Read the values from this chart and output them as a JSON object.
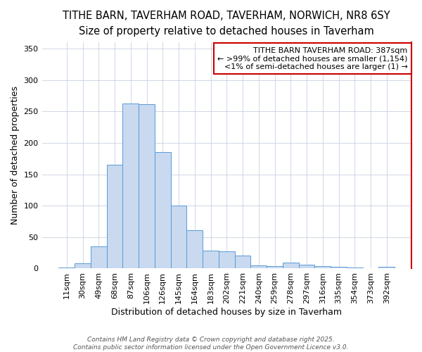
{
  "title1": "TITHE BARN, TAVERHAM ROAD, TAVERHAM, NORWICH, NR8 6SY",
  "title2": "Size of property relative to detached houses in Taverham",
  "xlabel": "Distribution of detached houses by size in Taverham",
  "ylabel": "Number of detached properties",
  "categories": [
    "11sqm",
    "30sqm",
    "49sqm",
    "68sqm",
    "87sqm",
    "106sqm",
    "126sqm",
    "145sqm",
    "164sqm",
    "183sqm",
    "202sqm",
    "221sqm",
    "240sqm",
    "259sqm",
    "278sqm",
    "297sqm",
    "316sqm",
    "335sqm",
    "354sqm",
    "373sqm",
    "392sqm"
  ],
  "values": [
    2,
    8,
    35,
    165,
    263,
    262,
    185,
    100,
    61,
    28,
    27,
    21,
    5,
    4,
    10,
    6,
    4,
    3,
    2,
    1,
    3
  ],
  "bar_color": "#c8d9f0",
  "bar_edge_color": "#5b9bd5",
  "annotation_line1": "TITHE BARN TAVERHAM ROAD: 387sqm",
  "annotation_line2": "← >99% of detached houses are smaller (1,154)",
  "annotation_line3": "<1% of semi-detached houses are larger (1) →",
  "annotation_box_color": "#ffffff",
  "annotation_box_edge_color": "#cc0000",
  "footer_text": "Contains HM Land Registry data © Crown copyright and database right 2025.\nContains public sector information licensed under the Open Government Licence v3.0.",
  "ylim": [
    0,
    360
  ],
  "yticks": [
    0,
    50,
    100,
    150,
    200,
    250,
    300,
    350
  ],
  "bg_color": "#ffffff",
  "grid_color": "#c8d0e0",
  "title_fontsize": 10.5,
  "subtitle_fontsize": 9.5,
  "axis_label_fontsize": 9,
  "tick_fontsize": 8,
  "annotation_fontsize": 8
}
